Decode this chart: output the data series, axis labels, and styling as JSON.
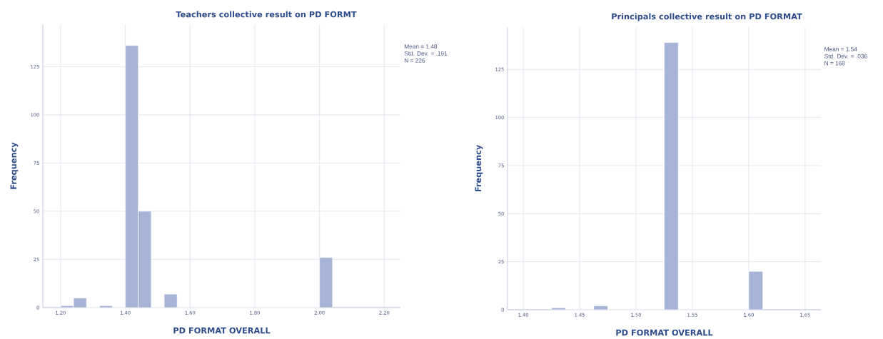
{
  "chart_data": [
    {
      "type": "histogram",
      "title": "Teachers collective result on PD FORMT",
      "xlabel": "PD FORMAT OVERALL",
      "ylabel": "Frequency",
      "bins": [
        1.2,
        1.24,
        1.28,
        1.32,
        1.36,
        1.4,
        1.44,
        1.48,
        1.52,
        1.56,
        1.6,
        1.64,
        1.68,
        1.72,
        1.76,
        1.8,
        1.84,
        1.88,
        1.92,
        1.96,
        2.0,
        2.04
      ],
      "values": [
        1,
        5,
        0,
        1,
        0,
        136,
        50,
        0,
        7,
        0,
        0,
        0,
        0,
        0,
        0,
        0,
        0,
        0,
        0,
        0,
        26
      ],
      "color": "#a7b4d8",
      "xlim": [
        1.145,
        2.25
      ],
      "ylim": [
        0,
        147
      ],
      "xticks": [
        {
          "value": 1.2,
          "label": "1.20"
        },
        {
          "value": 1.4,
          "label": "1.40"
        },
        {
          "value": 1.6,
          "label": "1.60"
        },
        {
          "value": 1.8,
          "label": "1.80"
        },
        {
          "value": 2.0,
          "label": "2.00"
        },
        {
          "value": 2.2,
          "label": "2.20"
        }
      ],
      "yticks": [
        0,
        25,
        50,
        75,
        100,
        125
      ],
      "grid": true,
      "annotations": [
        "Mean = 1.48",
        "Std. Dev. = .191",
        "N = 226"
      ]
    },
    {
      "type": "histogram",
      "title": "Principals collective result on PD FORMAT",
      "xlabel": "PD FORMAT OVERALL",
      "ylabel": "Frequency",
      "bins": [
        1.425,
        1.4375,
        1.45,
        1.4625,
        1.475,
        1.4875,
        1.5,
        1.5125,
        1.525,
        1.5375,
        1.55,
        1.5625,
        1.575,
        1.5875,
        1.6,
        1.6125
      ],
      "values": [
        1,
        0,
        0,
        2,
        0,
        0,
        0,
        0,
        139,
        0,
        0,
        0,
        0,
        0,
        20
      ],
      "color": "#a7b4d8",
      "xlim": [
        1.386,
        1.664
      ],
      "ylim": [
        0,
        147
      ],
      "xticks": [
        {
          "value": 1.4,
          "label": "1.40"
        },
        {
          "value": 1.45,
          "label": "1.45"
        },
        {
          "value": 1.5,
          "label": "1.50"
        },
        {
          "value": 1.55,
          "label": "1.55"
        },
        {
          "value": 1.6,
          "label": "1.60"
        },
        {
          "value": 1.65,
          "label": "1.65"
        }
      ],
      "yticks": [
        0,
        25,
        50,
        75,
        100,
        125
      ],
      "grid": true,
      "annotations": [
        "Mean = 1.54",
        "Std. Dev. = .036",
        "N = 168"
      ]
    }
  ]
}
